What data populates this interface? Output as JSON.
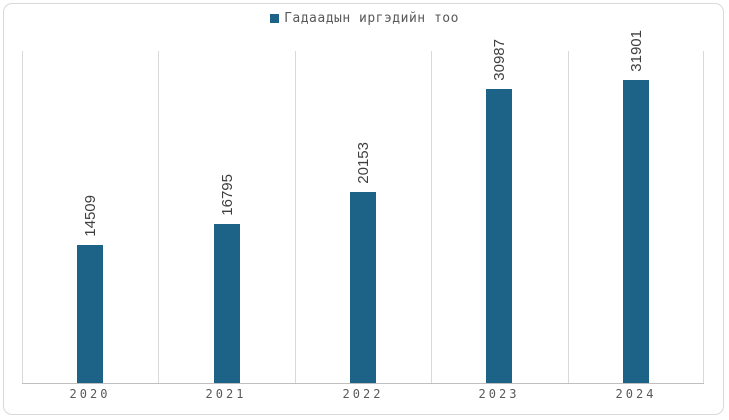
{
  "legend": {
    "series_label": "Гадаадын иргэдийн тоо"
  },
  "colors": {
    "bar": "#1c6387",
    "legend_swatch": "#1c6387",
    "gridline": "#d9d9d9",
    "axis_line": "#bfbfbf",
    "frame_border": "#d9d9d9",
    "axis_text": "#595959",
    "data_label_text": "#3f3f3f"
  },
  "chart_data": {
    "type": "bar",
    "title": "",
    "xlabel": "",
    "ylabel": "",
    "categories": [
      "2020",
      "2021",
      "2022",
      "2023",
      "2024"
    ],
    "series": [
      {
        "name": "Гадаадын иргэдийн тоо",
        "values": [
          14509,
          16795,
          20153,
          30987,
          31901
        ]
      }
    ],
    "data_labels": [
      "14509",
      "16795",
      "20153",
      "30987",
      "31901"
    ],
    "data_label_rotation_degrees": 90,
    "ylim": [
      0,
      35000
    ],
    "y_axis_visible": false,
    "grid": "vertical-category-boundaries",
    "legend_position": "top-center"
  }
}
